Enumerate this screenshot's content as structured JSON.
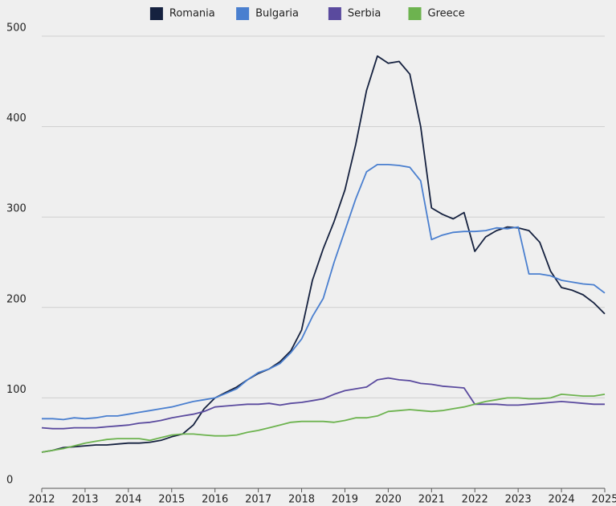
{
  "chart_data": {
    "type": "line",
    "x": [
      2012,
      2012.25,
      2012.5,
      2012.75,
      2013,
      2013.25,
      2013.5,
      2013.75,
      2014,
      2014.25,
      2014.5,
      2014.75,
      2015,
      2015.25,
      2015.5,
      2015.75,
      2016,
      2016.25,
      2016.5,
      2016.75,
      2017,
      2017.25,
      2017.5,
      2017.75,
      2018,
      2018.25,
      2018.5,
      2018.75,
      2019,
      2019.25,
      2019.5,
      2019.75,
      2020,
      2020.25,
      2020.5,
      2020.75,
      2021,
      2021.25,
      2021.5,
      2021.75,
      2022,
      2022.25,
      2022.5,
      2022.75,
      2023,
      2023.25,
      2023.5,
      2023.75,
      2024,
      2024.25,
      2024.5,
      2024.75,
      2025
    ],
    "series": [
      {
        "name": "Romania",
        "color": "#15213f",
        "values": [
          40,
          42,
          45,
          46,
          47,
          48,
          48,
          49,
          50,
          50,
          51,
          53,
          57,
          60,
          70,
          88,
          100,
          106,
          112,
          120,
          127,
          132,
          140,
          152,
          175,
          230,
          265,
          295,
          330,
          380,
          440,
          478,
          470,
          472,
          458,
          400,
          310,
          303,
          298,
          305,
          262,
          278,
          285,
          289,
          288,
          285,
          272,
          240,
          222,
          219,
          214,
          205,
          193
        ]
      },
      {
        "name": "Bulgaria",
        "color": "#4a7fcf",
        "values": [
          77,
          77,
          76,
          78,
          77,
          78,
          80,
          80,
          82,
          84,
          86,
          88,
          90,
          93,
          96,
          98,
          100,
          105,
          110,
          120,
          128,
          132,
          138,
          150,
          165,
          190,
          210,
          250,
          285,
          320,
          350,
          358,
          358,
          357,
          355,
          340,
          275,
          280,
          283,
          284,
          284,
          285,
          288,
          287,
          289,
          237,
          237,
          235,
          230,
          228,
          226,
          225,
          216
        ]
      },
      {
        "name": "Serbia",
        "color": "#5a4a9e",
        "values": [
          67,
          66,
          66,
          67,
          67,
          67,
          68,
          69,
          70,
          72,
          73,
          75,
          78,
          80,
          82,
          85,
          90,
          91,
          92,
          93,
          93,
          94,
          92,
          94,
          95,
          97,
          99,
          104,
          108,
          110,
          112,
          120,
          122,
          120,
          119,
          116,
          115,
          113,
          112,
          111,
          93,
          93,
          93,
          92,
          92,
          93,
          94,
          95,
          96,
          95,
          94,
          93,
          93
        ]
      },
      {
        "name": "Greece",
        "color": "#6db34f",
        "values": [
          40,
          42,
          44,
          47,
          50,
          52,
          54,
          55,
          55,
          55,
          53,
          56,
          59,
          60,
          60,
          59,
          58,
          58,
          59,
          62,
          64,
          67,
          70,
          73,
          74,
          74,
          74,
          73,
          75,
          78,
          78,
          80,
          85,
          86,
          87,
          86,
          85,
          86,
          88,
          90,
          93,
          96,
          98,
          100,
          100,
          99,
          99,
          100,
          104,
          103,
          102,
          102,
          104
        ]
      }
    ],
    "xlim": [
      2012,
      2025
    ],
    "xticks": [
      2012,
      2013,
      2014,
      2015,
      2016,
      2017,
      2018,
      2019,
      2020,
      2021,
      2022,
      2023,
      2024,
      2025
    ],
    "ylim": [
      0,
      500
    ],
    "yticks": [
      0,
      100,
      200,
      300,
      400,
      500
    ],
    "grid": true,
    "legend": "top"
  }
}
